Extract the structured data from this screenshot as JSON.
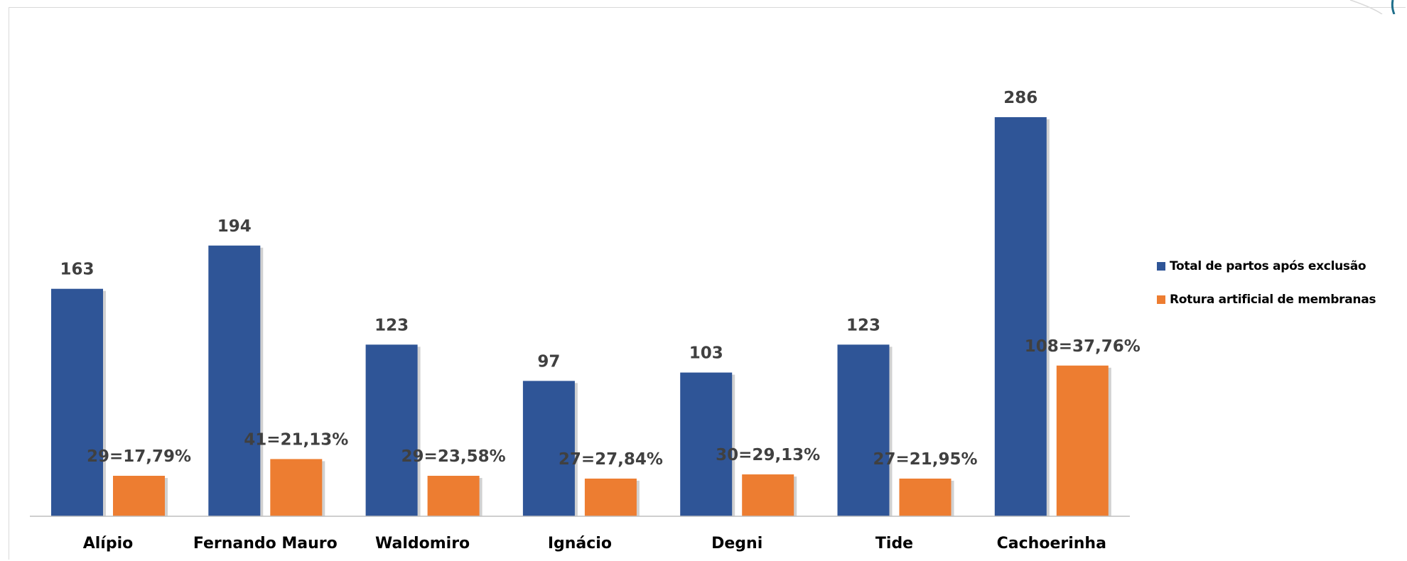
{
  "chart_data": {
    "type": "bar",
    "categories": [
      "Alípio",
      "Fernando Mauro",
      "Waldomiro",
      "Ignácio",
      "Degni",
      "Tide",
      "Cachoerinha"
    ],
    "series": [
      {
        "name": "Total de partos após exclusão",
        "color": "#2f5597",
        "values": [
          163,
          194,
          123,
          97,
          103,
          123,
          286
        ],
        "labels": [
          "163",
          "194",
          "123",
          "97",
          "103",
          "123",
          "286"
        ]
      },
      {
        "name": "Rotura artificial de membranas",
        "color": "#ed7d31",
        "values": [
          29,
          41,
          29,
          27,
          30,
          27,
          108
        ],
        "labels": [
          "29=17,79%",
          "41=21,13%",
          "29=23,58%",
          "27=27,84%",
          "30=29,13%",
          "27=21,95%",
          "108=37,76%"
        ]
      }
    ],
    "title": "",
    "xlabel": "",
    "ylabel": "",
    "ylim": [
      0,
      300
    ],
    "grid": false,
    "legend_position": "right"
  }
}
